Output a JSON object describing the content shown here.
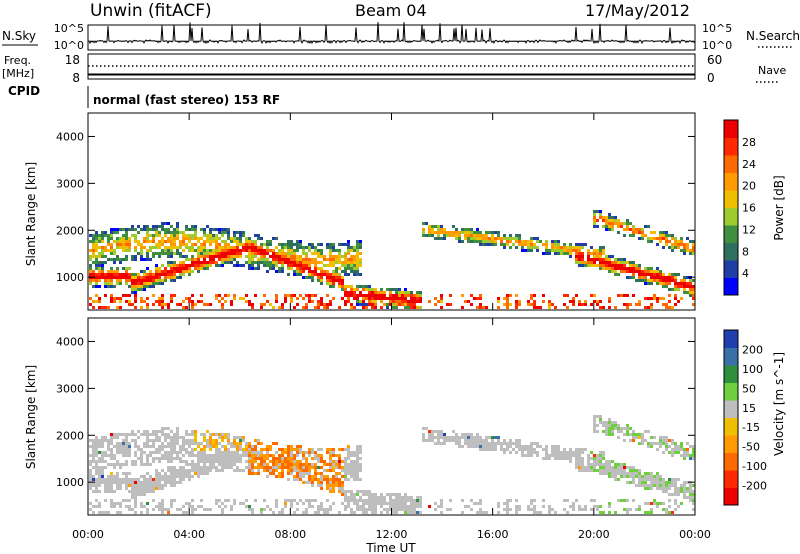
{
  "header": {
    "station": "Unwin (fitACF)",
    "beam": "Beam 04",
    "date": "17/May/2012"
  },
  "top_panel": {
    "left_label": "N.Sky",
    "left_ticks": [
      "10^5",
      "10^0"
    ],
    "right_label": "N.Search",
    "right_ticks": [
      "10^5",
      "10^0"
    ]
  },
  "freq_panel": {
    "left_label_1": "Freq.",
    "left_label_2": "[MHz]",
    "left_ticks": [
      "18",
      "8"
    ],
    "right_label": "Nave",
    "right_ticks": [
      "60",
      "0"
    ]
  },
  "cpid_panel": {
    "label": "CPID",
    "text": "normal (fast stereo) 153 RF"
  },
  "colors": {
    "power_scale": [
      "#0000ff",
      "#1f3fa6",
      "#2f6f5f",
      "#3f8f3f",
      "#9ecb2f",
      "#f0c000",
      "#ff9a00",
      "#ff6a00",
      "#ff2a00",
      "#ee0000"
    ],
    "velocity_scale": [
      "#2040b0",
      "#3a70a8",
      "#2f8f3f",
      "#6fd03f",
      "#bebebe",
      "#f0c000",
      "#ff9a00",
      "#ff6a00",
      "#ff2a00",
      "#ee0000"
    ]
  },
  "chart_data": [
    {
      "type": "heatmap",
      "name": "power",
      "ylabel": "Slant Range [km]",
      "yticks": [
        "1000",
        "2000",
        "3000",
        "4000"
      ],
      "ylim": [
        300,
        4500
      ],
      "colorbar_label": "Power [dB]",
      "colorbar_ticks": [
        "4",
        "8",
        "12",
        "16",
        "20",
        "24",
        "28"
      ]
    },
    {
      "type": "heatmap",
      "name": "velocity",
      "ylabel": "Slant Range [km]",
      "yticks": [
        "1000",
        "2000",
        "3000",
        "4000"
      ],
      "ylim": [
        300,
        4500
      ],
      "colorbar_label": "Velocity [m s^-1]",
      "colorbar_ticks": [
        "200",
        "100",
        "50",
        "15",
        "-15",
        "-50",
        "-100",
        "-200"
      ]
    }
  ],
  "x_axis": {
    "ticks": [
      "00:00",
      "04:00",
      "08:00",
      "12:00",
      "16:00",
      "20:00",
      "00:00"
    ],
    "label": "Time UT"
  }
}
